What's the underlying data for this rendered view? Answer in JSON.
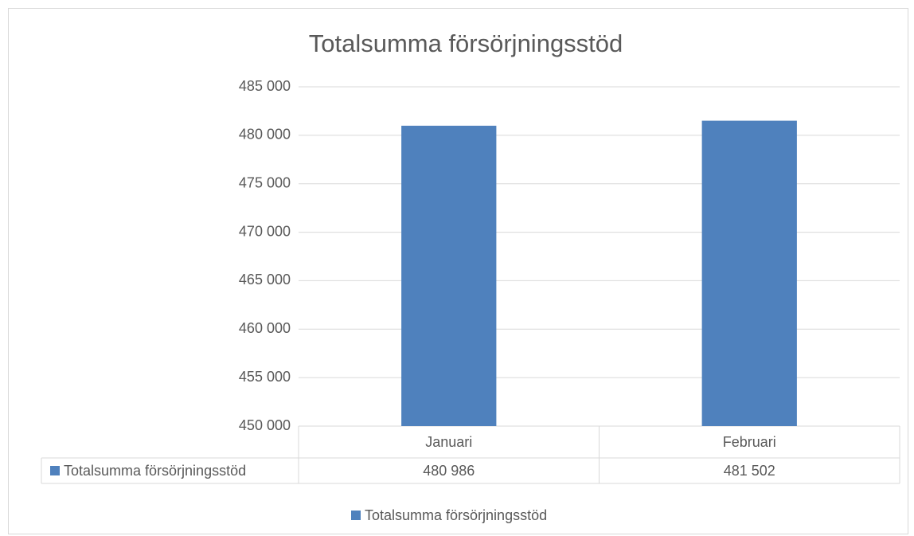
{
  "chart_data": {
    "type": "bar",
    "title": "Totalsumma försörjningsstöd",
    "categories": [
      "Januari",
      "Februari"
    ],
    "series": [
      {
        "name": "Totalsumma försörjningsstöd",
        "color": "#4f81bd",
        "values": [
          480986,
          481502
        ],
        "value_labels": [
          "480 986",
          "481 502"
        ]
      }
    ],
    "ylim": [
      450000,
      485000
    ],
    "yticks": [
      {
        "value": 450000,
        "label": "450 000"
      },
      {
        "value": 455000,
        "label": "455 000"
      },
      {
        "value": 460000,
        "label": "460 000"
      },
      {
        "value": 465000,
        "label": "465 000"
      },
      {
        "value": 470000,
        "label": "470 000"
      },
      {
        "value": 475000,
        "label": "475 000"
      },
      {
        "value": 480000,
        "label": "480 000"
      },
      {
        "value": 485000,
        "label": "485 000"
      }
    ],
    "grid": true,
    "legend": "bottom"
  }
}
